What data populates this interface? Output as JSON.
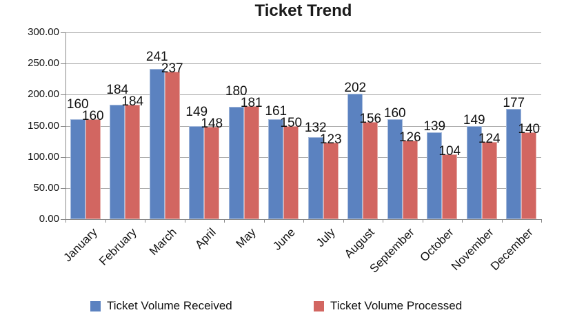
{
  "title": "Ticket Trend",
  "chart_data": {
    "type": "bar",
    "title": "Ticket Trend",
    "categories": [
      "January",
      "February",
      "March",
      "April",
      "May",
      "June",
      "July",
      "August",
      "September",
      "October",
      "November",
      "December"
    ],
    "series": [
      {
        "name": "Ticket Volume Received",
        "color": "#5b82c0",
        "values": [
          160,
          184,
          241,
          149,
          180,
          161,
          132,
          202,
          160,
          139,
          149,
          177
        ]
      },
      {
        "name": "Ticket Volume Processed",
        "color": "#d26661",
        "values": [
          160,
          184,
          237,
          148,
          181,
          150,
          123,
          156,
          126,
          104,
          124,
          140
        ]
      }
    ],
    "xlabel": "",
    "ylabel": "",
    "ylim": [
      0,
      300
    ],
    "y_tick_step": 50,
    "y_tick_labels": [
      "0.00",
      "50.00",
      "100.00",
      "150.00",
      "200.00",
      "250.00",
      "300.00"
    ],
    "grid": true,
    "legend_position": "bottom",
    "data_labels": true
  },
  "style": {
    "bar_received": "#5b82c0",
    "bar_processed": "#d26661",
    "gridline": "#ababab",
    "axis": "#878787",
    "text": "#111111"
  }
}
